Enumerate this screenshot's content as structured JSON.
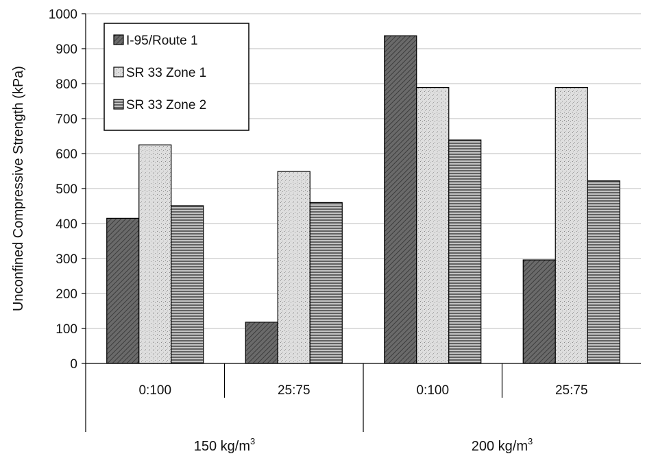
{
  "chart_data": {
    "type": "bar",
    "ylabel": "Unconfined Compressive Strength (kPa)",
    "ylim": [
      0,
      1000
    ],
    "yticks": [
      0,
      100,
      200,
      300,
      400,
      500,
      600,
      700,
      800,
      900,
      1000
    ],
    "grid": true,
    "legend_position": "top-left",
    "categories": [
      "0:100",
      "25:75",
      "0:100",
      "25:75"
    ],
    "category_groups": [
      {
        "label": "150 kg/m",
        "superscript": "3",
        "categories": [
          0,
          1
        ]
      },
      {
        "label": "200 kg/m",
        "superscript": "3",
        "categories": [
          2,
          3
        ]
      }
    ],
    "series": [
      {
        "name": "I-95/Route 1",
        "values": [
          415,
          118,
          937,
          296
        ],
        "color": "#5e5e5e",
        "pattern": "diagonal"
      },
      {
        "name": "SR 33 Zone 1",
        "values": [
          625,
          549,
          789,
          789
        ],
        "color": "#d6d6d6",
        "pattern": "speckle"
      },
      {
        "name": "SR 33 Zone 2",
        "values": [
          451,
          460,
          639,
          522
        ],
        "color": "#9a9a9a",
        "pattern": "horizontal"
      }
    ]
  }
}
